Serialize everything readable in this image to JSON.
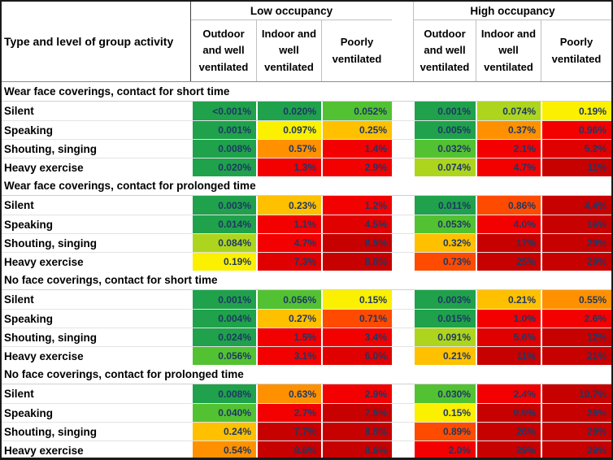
{
  "chart_data": {
    "type": "heatmap",
    "corner_label": "Type and level of group activity",
    "col_groups": [
      "Low occupancy",
      "High occupancy"
    ],
    "col_headers": [
      "Outdoor and well ventilated",
      "Indoor and well ventilated",
      "Poorly ventilated"
    ],
    "sections": [
      {
        "title": "Wear face coverings, contact for short time",
        "rows": [
          {
            "label": "Silent",
            "cells": [
              {
                "v": "<0.001%",
                "c": "green"
              },
              {
                "v": "0.020%",
                "c": "green"
              },
              {
                "v": "0.052%",
                "c": "lgreen"
              },
              {
                "v": "0.001%",
                "c": "green"
              },
              {
                "v": "0.074%",
                "c": "ygreen"
              },
              {
                "v": "0.19%",
                "c": "yellow"
              }
            ]
          },
          {
            "label": "Speaking",
            "cells": [
              {
                "v": "0.001%",
                "c": "green"
              },
              {
                "v": "0.097%",
                "c": "yellow"
              },
              {
                "v": "0.25%",
                "c": "amber"
              },
              {
                "v": "0.005%",
                "c": "green"
              },
              {
                "v": "0.37%",
                "c": "orange"
              },
              {
                "v": "0.96%",
                "c": "red"
              }
            ]
          },
          {
            "label": "Shouting, singing",
            "cells": [
              {
                "v": "0.008%",
                "c": "green"
              },
              {
                "v": "0.57%",
                "c": "orange"
              },
              {
                "v": "1.4%",
                "c": "red"
              },
              {
                "v": "0.032%",
                "c": "lgreen"
              },
              {
                "v": "2.1%",
                "c": "red"
              },
              {
                "v": "5.2%",
                "c": "red2"
              }
            ]
          },
          {
            "label": "Heavy exercise",
            "cells": [
              {
                "v": "0.020%",
                "c": "green"
              },
              {
                "v": "1.3%",
                "c": "red"
              },
              {
                "v": "2.9%",
                "c": "red"
              },
              {
                "v": "0.074%",
                "c": "ygreen"
              },
              {
                "v": "4.7%",
                "c": "red"
              },
              {
                "v": "11%",
                "c": "dred"
              }
            ]
          }
        ]
      },
      {
        "title": "Wear face coverings, contact for prolonged time",
        "rows": [
          {
            "label": "Silent",
            "cells": [
              {
                "v": "0.003%",
                "c": "green"
              },
              {
                "v": "0.23%",
                "c": "amber"
              },
              {
                "v": "1.2%",
                "c": "red"
              },
              {
                "v": "0.011%",
                "c": "green"
              },
              {
                "v": "0.86%",
                "c": "ored"
              },
              {
                "v": "4.4%",
                "c": "dred"
              }
            ]
          },
          {
            "label": "Speaking",
            "cells": [
              {
                "v": "0.014%",
                "c": "green"
              },
              {
                "v": "1.1%",
                "c": "red"
              },
              {
                "v": "4.5%",
                "c": "red2"
              },
              {
                "v": "0.053%",
                "c": "lgreen"
              },
              {
                "v": "4.0%",
                "c": "red"
              },
              {
                "v": "16%",
                "c": "dred"
              }
            ]
          },
          {
            "label": "Shouting, singing",
            "cells": [
              {
                "v": "0.084%",
                "c": "ygreen"
              },
              {
                "v": "4.7%",
                "c": "red"
              },
              {
                "v": "8.5%",
                "c": "dred"
              },
              {
                "v": "0.32%",
                "c": "amber"
              },
              {
                "v": "17%",
                "c": "dred"
              },
              {
                "v": "29%",
                "c": "dred"
              }
            ]
          },
          {
            "label": "Heavy exercise",
            "cells": [
              {
                "v": "0.19%",
                "c": "yellow"
              },
              {
                "v": "7.3%",
                "c": "red2"
              },
              {
                "v": "8.6%",
                "c": "dred"
              },
              {
                "v": "0.73%",
                "c": "ored"
              },
              {
                "v": "25%",
                "c": "dred"
              },
              {
                "v": "29%",
                "c": "dred"
              }
            ]
          }
        ]
      },
      {
        "title": "No face coverings, contact for short time",
        "rows": [
          {
            "label": "Silent",
            "cells": [
              {
                "v": "0.001%",
                "c": "green"
              },
              {
                "v": "0.056%",
                "c": "lgreen"
              },
              {
                "v": "0.15%",
                "c": "yellow"
              },
              {
                "v": "0.003%",
                "c": "green"
              },
              {
                "v": "0.21%",
                "c": "amber"
              },
              {
                "v": "0.55%",
                "c": "orange"
              }
            ]
          },
          {
            "label": "Speaking",
            "cells": [
              {
                "v": "0.004%",
                "c": "green"
              },
              {
                "v": "0.27%",
                "c": "amber"
              },
              {
                "v": "0.71%",
                "c": "ored"
              },
              {
                "v": "0.015%",
                "c": "green"
              },
              {
                "v": "1.0%",
                "c": "red"
              },
              {
                "v": "2.6%",
                "c": "red"
              }
            ]
          },
          {
            "label": "Shouting, singing",
            "cells": [
              {
                "v": "0.024%",
                "c": "green"
              },
              {
                "v": "1.5%",
                "c": "red"
              },
              {
                "v": "3.4%",
                "c": "red"
              },
              {
                "v": "0.091%",
                "c": "ygreen"
              },
              {
                "v": "5.6%",
                "c": "red2"
              },
              {
                "v": "12%",
                "c": "dred"
              }
            ]
          },
          {
            "label": "Heavy exercise",
            "cells": [
              {
                "v": "0.056%",
                "c": "lgreen"
              },
              {
                "v": "3.1%",
                "c": "red"
              },
              {
                "v": "6.0%",
                "c": "red2"
              },
              {
                "v": "0.21%",
                "c": "amber"
              },
              {
                "v": "11%",
                "c": "dred"
              },
              {
                "v": "21%",
                "c": "dred"
              }
            ]
          }
        ]
      },
      {
        "title": "No face coverings, contact for prolonged time",
        "rows": [
          {
            "label": "Silent",
            "cells": [
              {
                "v": "0.008%",
                "c": "green"
              },
              {
                "v": "0.63%",
                "c": "orange"
              },
              {
                "v": "2.9%",
                "c": "red"
              },
              {
                "v": "0.030%",
                "c": "lgreen"
              },
              {
                "v": "2.4%",
                "c": "red"
              },
              {
                "v": "10.7%",
                "c": "dred"
              }
            ]
          },
          {
            "label": "Speaking",
            "cells": [
              {
                "v": "0.040%",
                "c": "lgreen"
              },
              {
                "v": "2.7%",
                "c": "red"
              },
              {
                "v": "7.5%",
                "c": "dred"
              },
              {
                "v": "0.15%",
                "c": "yellow"
              },
              {
                "v": "9.9%",
                "c": "dred"
              },
              {
                "v": "26%",
                "c": "dred"
              }
            ]
          },
          {
            "label": "Shouting, singing",
            "cells": [
              {
                "v": "0.24%",
                "c": "amber"
              },
              {
                "v": "7.7%",
                "c": "dred"
              },
              {
                "v": "8.6%",
                "c": "dred"
              },
              {
                "v": "0.89%",
                "c": "ored"
              },
              {
                "v": "26%",
                "c": "dred"
              },
              {
                "v": "29%",
                "c": "dred"
              }
            ]
          },
          {
            "label": "Heavy exercise",
            "cells": [
              {
                "v": "0.54%",
                "c": "orange"
              },
              {
                "v": "8.6%",
                "c": "dred"
              },
              {
                "v": "8.6%",
                "c": "dred"
              },
              {
                "v": "2.0%",
                "c": "red"
              },
              {
                "v": "29%",
                "c": "dred"
              },
              {
                "v": "29%",
                "c": "dred"
              }
            ]
          }
        ]
      }
    ]
  },
  "palette": {
    "green": "#1FA24B",
    "lgreen": "#53C232",
    "ygreen": "#ADD51E",
    "yellow": "#FBF000",
    "amber": "#FFC000",
    "orange": "#FF9100",
    "ored": "#FF4B00",
    "red": "#F30000",
    "red2": "#E00000",
    "dred": "#C70000"
  },
  "cell_text_color": "#1F3864"
}
